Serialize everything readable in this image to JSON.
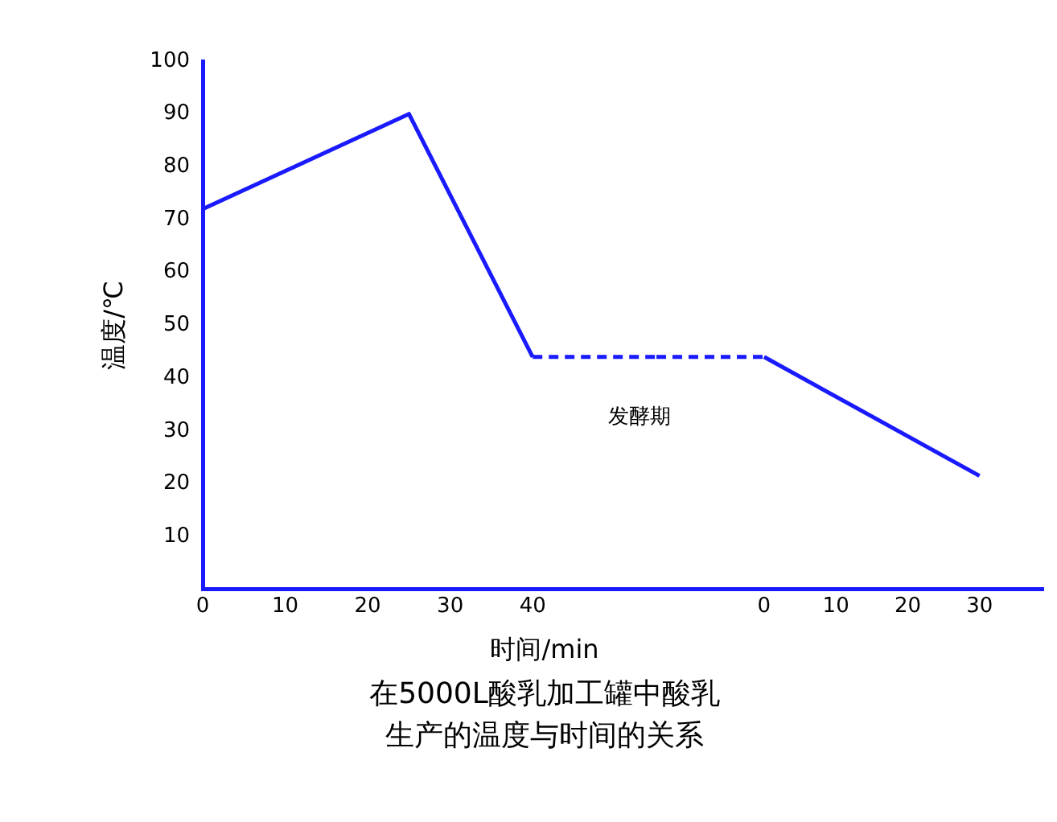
{
  "chart_data": [
    {
      "type": "line",
      "title": "在5000L酸乳加工罐中酸乳生产的温度与时间的关系",
      "xlabel": "时间/min",
      "ylabel": "温度/℃",
      "xlim": [
        0,
        55
      ],
      "xticks": [
        0,
        10,
        20,
        30,
        40
      ],
      "ylim": [
        0,
        100
      ],
      "yticks": [
        10,
        20,
        30,
        40,
        50,
        60,
        70,
        80,
        90,
        100
      ],
      "grid": false,
      "legend": false,
      "marker": "none",
      "series": [
        {
          "color": "#1a1aff",
          "x": [
            0,
            25,
            40
          ],
          "values": [
            72,
            90,
            44
          ],
          "line_style": "solid"
        },
        {
          "color": "#1a1aff",
          "x": [
            40,
            55
          ],
          "values": [
            44,
            44
          ],
          "line_style": "dashed"
        }
      ],
      "annotations": [
        "发酵期"
      ]
    },
    {
      "type": "line",
      "xlim": [
        -15,
        39
      ],
      "xticks": [
        0,
        10,
        20,
        30
      ],
      "ylim": [
        0,
        100
      ],
      "tick_labels": "x",
      "grid": false,
      "legend": false,
      "marker": "none",
      "series": [
        {
          "color": "#1a1aff",
          "x": [
            -15,
            0
          ],
          "values": [
            44,
            44
          ],
          "line_style": "dashed"
        },
        {
          "color": "#1a1aff",
          "x": [
            0,
            30
          ],
          "values": [
            44,
            21.5
          ],
          "line_style": "solid"
        }
      ]
    }
  ]
}
